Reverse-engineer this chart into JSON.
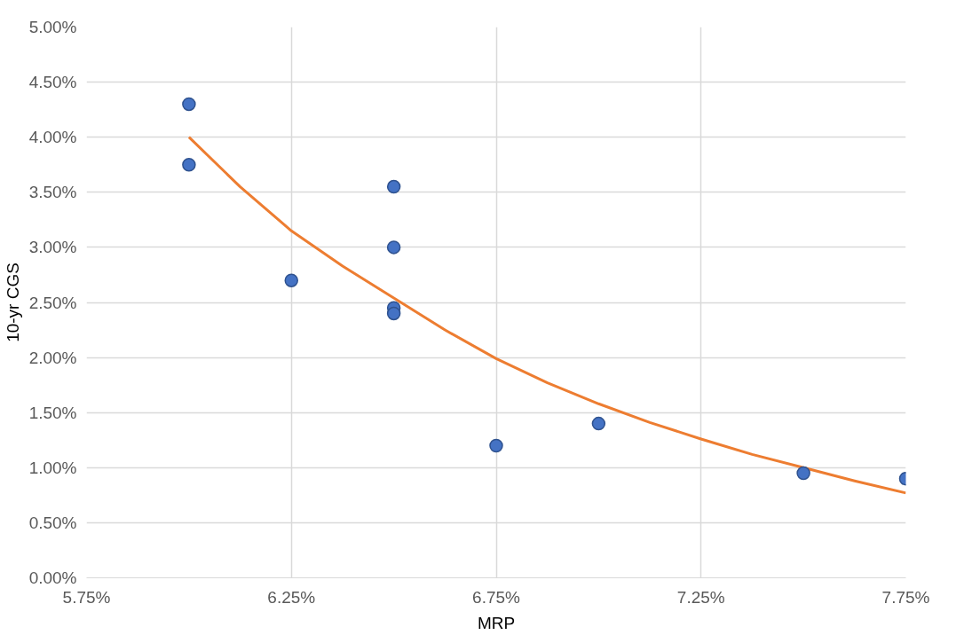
{
  "chart_data": {
    "type": "scatter",
    "xlabel": "MRP",
    "ylabel": "10-yr CGS",
    "series": [
      {
        "color": "#4472c4",
        "marker": "circle",
        "x": [
          6.0,
          6.0,
          6.25,
          6.5,
          6.5,
          6.5,
          6.5,
          6.75,
          7.0,
          7.5,
          7.75
        ],
        "values": [
          4.3,
          3.75,
          2.7,
          3.55,
          3.0,
          2.45,
          2.4,
          1.2,
          1.4,
          0.95,
          0.9
        ]
      },
      {
        "type": "line",
        "color": "#ed7d31",
        "x": [
          6.0,
          6.125,
          6.25,
          6.375,
          6.5,
          6.625,
          6.75,
          6.875,
          7.0,
          7.125,
          7.25,
          7.375,
          7.5,
          7.625,
          7.75
        ],
        "values": [
          4.0,
          3.55,
          3.15,
          2.83,
          2.54,
          2.25,
          1.99,
          1.77,
          1.58,
          1.41,
          1.26,
          1.12,
          1.0,
          0.88,
          0.77
        ]
      }
    ],
    "xlim": [
      5.75,
      7.75
    ],
    "xticks": [
      {
        "value": 5.75,
        "label": "5.75%"
      },
      {
        "value": 6.25,
        "label": "6.25%"
      },
      {
        "value": 6.75,
        "label": "6.75%"
      },
      {
        "value": 7.25,
        "label": "7.25%"
      },
      {
        "value": 7.75,
        "label": "7.75%"
      }
    ],
    "ylim": [
      0,
      5
    ],
    "yticks": [
      {
        "value": 0,
        "label": "0.00%"
      },
      {
        "value": 0.5,
        "label": "0.50%"
      },
      {
        "value": 1,
        "label": "1.00%"
      },
      {
        "value": 1.5,
        "label": "1.50%"
      },
      {
        "value": 2,
        "label": "2.00%"
      },
      {
        "value": 2.5,
        "label": "2.50%"
      },
      {
        "value": 3,
        "label": "3.00%"
      },
      {
        "value": 3.5,
        "label": "3.50%"
      },
      {
        "value": 4,
        "label": "4.00%"
      },
      {
        "value": 4.5,
        "label": "4.50%"
      },
      {
        "value": 5,
        "label": "5.00%"
      }
    ],
    "grid": true
  }
}
